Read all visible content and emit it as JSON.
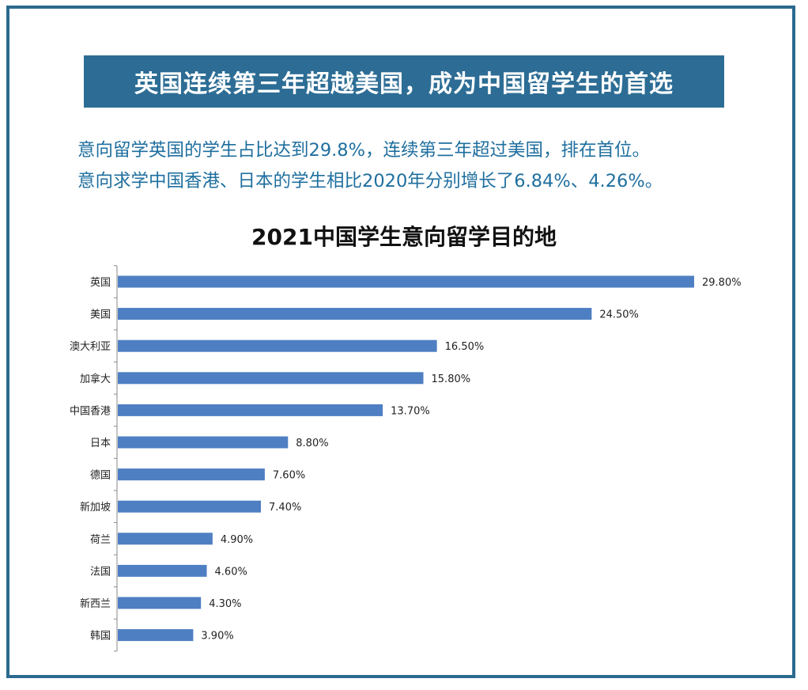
{
  "banner": {
    "title": "英国连续第三年超越美国，成为中国留学生的首选"
  },
  "subtitle": {
    "line1": "意向留学英国的学生占比达到29.8%，连续第三年超过美国，排在首位。",
    "line2": "意向求学中国香港、日本的学生相比2020年分别增长了6.84%、4.26%。"
  },
  "colors": {
    "bar": "#4e7fc3",
    "frame": "#2b6a8f",
    "banner": "#2d6d95",
    "subtitle": "#1f6f9f"
  },
  "chart_data": {
    "type": "bar",
    "orientation": "horizontal",
    "title": "2021中国学生意向留学目的地",
    "categories": [
      "英国",
      "美国",
      "澳大利亚",
      "加拿大",
      "中国香港",
      "日本",
      "德国",
      "新加坡",
      "荷兰",
      "法国",
      "新西兰",
      "韩国"
    ],
    "values": [
      29.8,
      24.5,
      16.5,
      15.8,
      13.7,
      8.8,
      7.6,
      7.4,
      4.9,
      4.6,
      4.3,
      3.9
    ],
    "labels": [
      "29.80%",
      "24.50%",
      "16.50%",
      "15.80%",
      "13.70%",
      "8.80%",
      "7.60%",
      "7.40%",
      "4.90%",
      "4.60%",
      "4.30%",
      "3.90%"
    ],
    "xlim": [
      0,
      29.8
    ],
    "xlabel": "",
    "ylabel": "",
    "grid": false
  }
}
